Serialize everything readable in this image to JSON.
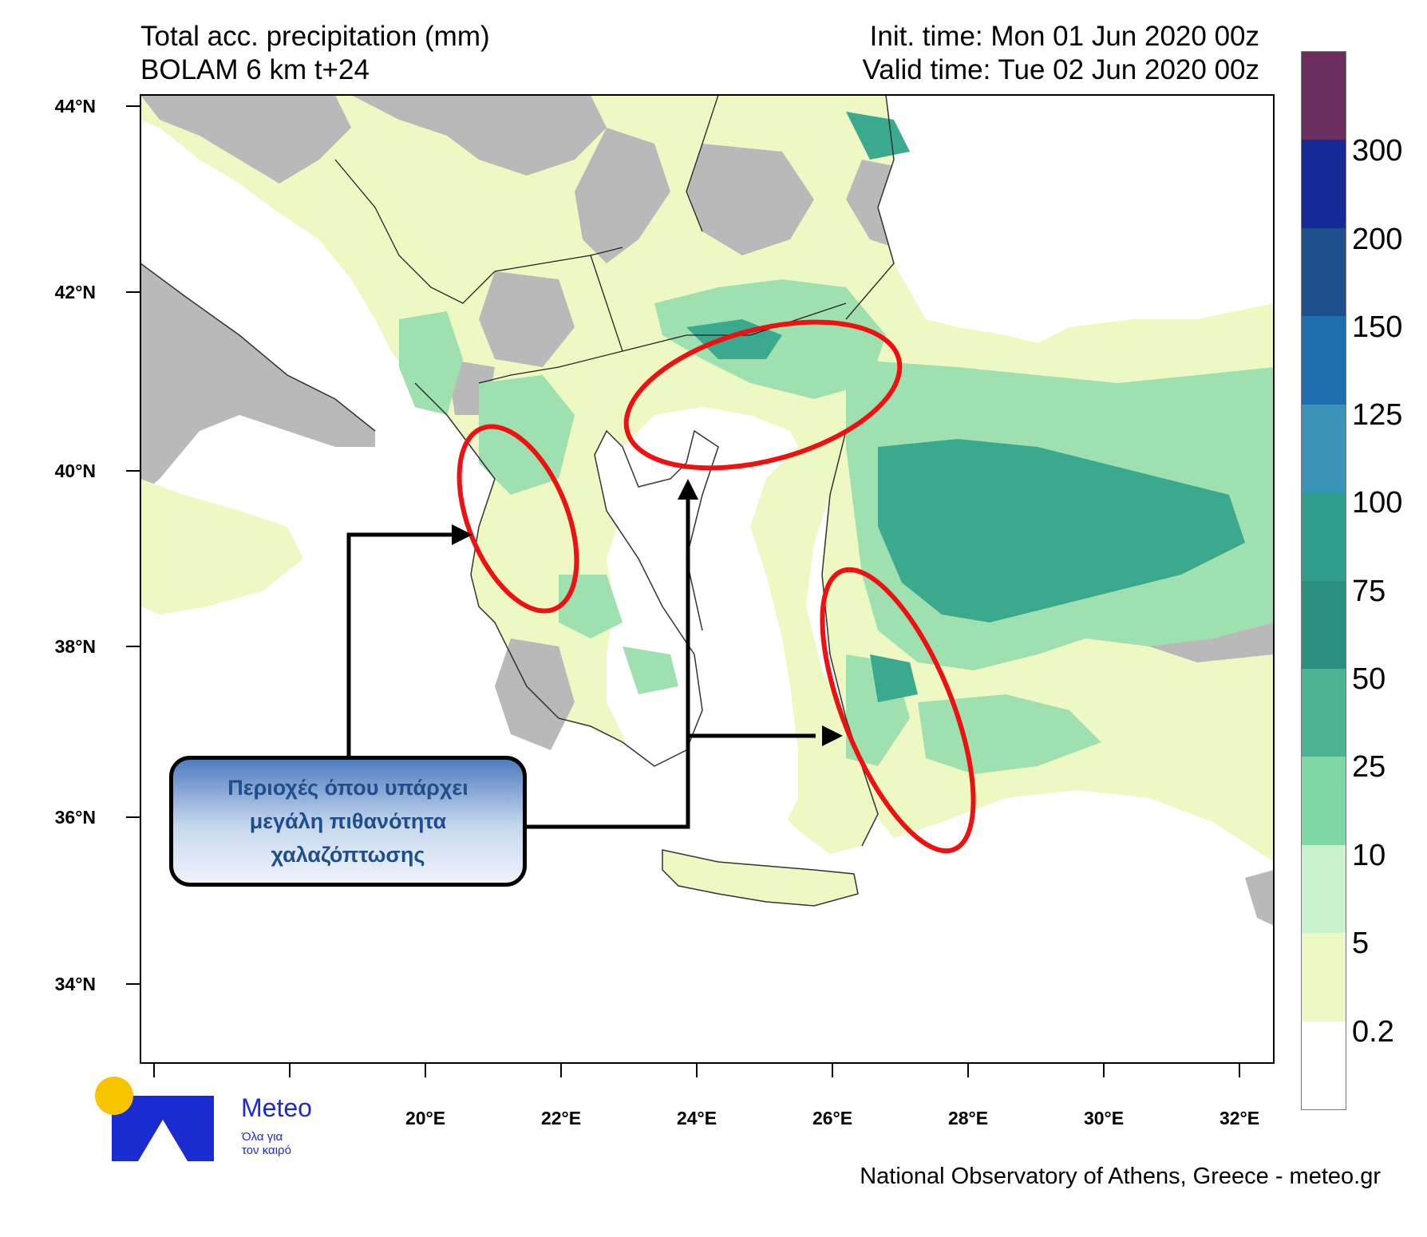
{
  "header": {
    "title_line1": "Total acc. precipitation (mm)",
    "title_line2": "BOLAM 6 km t+24",
    "init_time": "Init. time: Mon 01 Jun 2020 00z",
    "valid_time": "Valid time: Tue 02 Jun 2020 00z"
  },
  "axes": {
    "lat_labels": [
      "44°N",
      "42°N",
      "40°N",
      "38°N",
      "36°N",
      "34°N"
    ],
    "lon_labels": [
      "20°E",
      "22°E",
      "24°E",
      "26°E",
      "28°E",
      "30°E",
      "32°E"
    ]
  },
  "colorbar": {
    "labels": [
      "300",
      "200",
      "150",
      "125",
      "100",
      "75",
      "50",
      "25",
      "10",
      "5",
      "0.2"
    ],
    "colors": [
      "#6b2e5e",
      "#142a96",
      "#1c4f8c",
      "#1f6fb0",
      "#3a93b8",
      "#2f9e8c",
      "#2a8f7e",
      "#4cb494",
      "#7fd7a4",
      "#c8f3cc",
      "#eef8c2",
      "#ffffff"
    ]
  },
  "callout": {
    "line1": "Περιοχές όπου υπάρχει",
    "line2": "μεγάλη πιθανότητα",
    "line3": "χαλαζόπτωσης"
  },
  "logo": {
    "word": "Meteo",
    "tagline1": "Όλα για",
    "tagline2": "τον καιρό"
  },
  "credit": "National Observatory of Athens, Greece - meteo.gr",
  "palette": {
    "land_no_data": "#b9b9b9",
    "light_precip": "#eef8c2",
    "mid_precip": "#9ee0b0",
    "high_precip": "#3aa98e",
    "highlight_ellipse": "#ee1111"
  }
}
